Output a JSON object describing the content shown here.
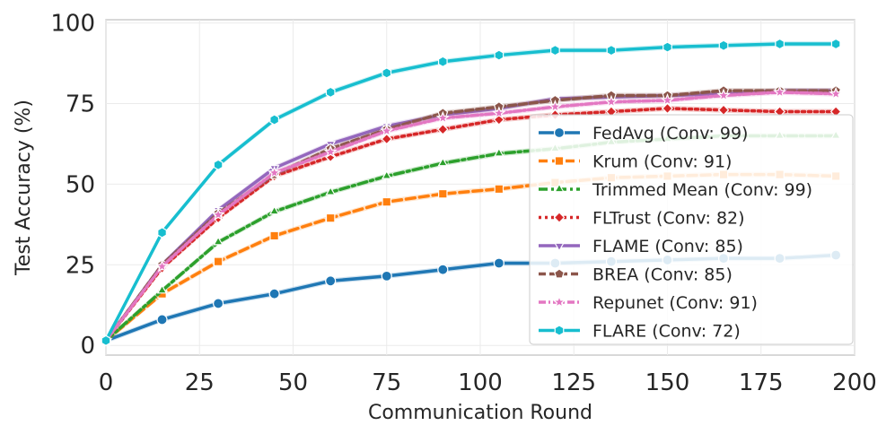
{
  "chart_data": {
    "type": "line",
    "title": "",
    "xlabel": "Communication Round",
    "ylabel": "Test Accuracy (%)",
    "xlim": [
      0,
      200
    ],
    "ylim": [
      -3,
      101
    ],
    "xticks": [
      0,
      25,
      50,
      75,
      100,
      125,
      150,
      175,
      200
    ],
    "yticks": [
      0,
      25,
      50,
      75,
      100
    ],
    "grid": true,
    "legend_position": "lower-right",
    "x": [
      0,
      15,
      30,
      45,
      60,
      75,
      90,
      105,
      120,
      135,
      150,
      165,
      180,
      195
    ],
    "series": [
      {
        "name": "FedAvg (Conv: 99)",
        "color": "#1f77b4",
        "dash": "",
        "marker": "circle",
        "values": [
          1.5,
          8,
          13,
          16,
          20,
          21.5,
          23.5,
          25.5,
          25.5,
          26,
          26.5,
          27,
          27,
          28
        ]
      },
      {
        "name": "Krum (Conv: 91)",
        "color": "#ff7f0e",
        "dash": "10,5",
        "marker": "square",
        "values": [
          1.5,
          16,
          26,
          34,
          39.5,
          44.5,
          47,
          48.5,
          50.5,
          52,
          52.5,
          53,
          53,
          52.5
        ]
      },
      {
        "name": "Trimmed Mean (Conv: 99)",
        "color": "#2ca02c",
        "dash": "10,4,3,4",
        "marker": "triangle-up",
        "values": [
          1.5,
          17,
          32,
          41.5,
          47.5,
          52.5,
          56.5,
          59.5,
          61,
          63,
          64,
          65,
          65,
          65
        ]
      },
      {
        "name": "FLTrust (Conv: 82)",
        "color": "#d62728",
        "dash": "3,4",
        "marker": "diamond",
        "values": [
          1.5,
          24,
          39.5,
          52.5,
          58.5,
          64,
          67,
          70,
          71.5,
          72.5,
          73.5,
          73,
          72.5,
          72.5
        ]
      },
      {
        "name": "FLAME (Conv: 85)",
        "color": "#9467bd",
        "dash": "",
        "marker": "triangle-down",
        "values": [
          1.5,
          25,
          42,
          55,
          62.5,
          68,
          71.5,
          73.5,
          76.5,
          77,
          77.5,
          78,
          79,
          79
        ]
      },
      {
        "name": "BREA (Conv: 85)",
        "color": "#8c564b",
        "dash": "8,4",
        "marker": "pentagon",
        "values": [
          1.5,
          25,
          41,
          53,
          61,
          67,
          72,
          74,
          76,
          77.5,
          77.5,
          79,
          79,
          79
        ]
      },
      {
        "name": "Repunet (Conv: 91)",
        "color": "#e377c2",
        "dash": "8,3,2,3",
        "marker": "star",
        "values": [
          1.5,
          24.5,
          40.5,
          53.5,
          60,
          66.5,
          70.5,
          72,
          74,
          75.5,
          76,
          77.5,
          78.5,
          78
        ]
      },
      {
        "name": "FLARE (Conv: 72)",
        "color": "#17becf",
        "dash": "",
        "marker": "hexagon",
        "values": [
          1.5,
          35,
          56,
          70,
          78.5,
          84.5,
          88,
          90,
          91.5,
          91.5,
          92.5,
          93,
          93.5,
          93.5
        ]
      }
    ]
  }
}
